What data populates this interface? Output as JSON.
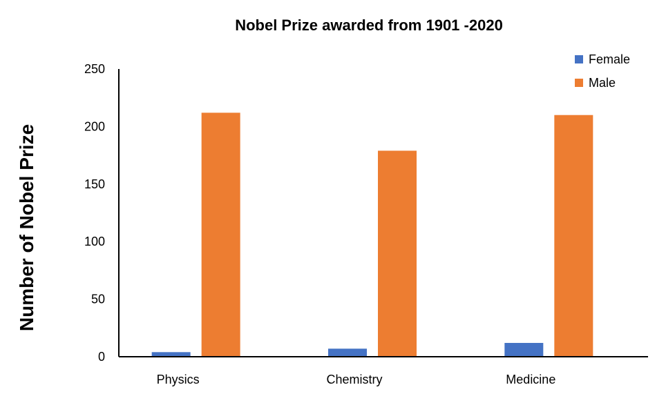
{
  "chart_data": {
    "type": "bar",
    "title": "Nobel Prize awarded from 1901 -2020",
    "xlabel": "",
    "ylabel": "Number of Nobel Prize",
    "categories": [
      "Physics",
      "Chemistry",
      "Medicine"
    ],
    "series": [
      {
        "name": "Female",
        "values": [
          4,
          7,
          12
        ],
        "color": "#4472C4"
      },
      {
        "name": "Male",
        "values": [
          212,
          179,
          210
        ],
        "color": "#ED7D31"
      }
    ],
    "ylim": [
      0,
      250
    ],
    "yticks": [
      "0",
      "50",
      "100",
      "150",
      "200",
      "250"
    ],
    "grid": false,
    "legend_position": "top-right"
  }
}
